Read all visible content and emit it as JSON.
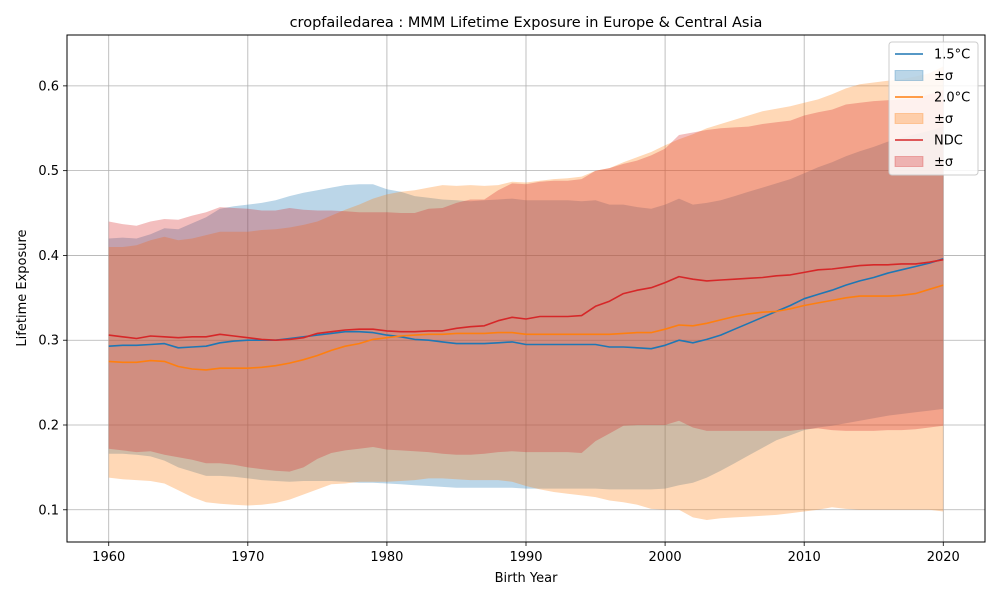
{
  "chart_data": {
    "type": "area",
    "title": "cropfailedarea : MMM Lifetime Exposure in Europe & Central Asia",
    "xlabel": "Birth Year",
    "ylabel": "Lifetime Exposure",
    "xlim": [
      1957,
      2023
    ],
    "ylim": [
      0.062,
      0.66
    ],
    "xticks": [
      1960,
      1970,
      1980,
      1990,
      2000,
      2010,
      2020
    ],
    "yticks": [
      0.1,
      0.2,
      0.3,
      0.4,
      0.5,
      0.6
    ],
    "grid": true,
    "legend_position": "top-right",
    "x": [
      1960,
      1961,
      1962,
      1963,
      1964,
      1965,
      1966,
      1967,
      1968,
      1969,
      1970,
      1971,
      1972,
      1973,
      1974,
      1975,
      1976,
      1977,
      1978,
      1979,
      1980,
      1981,
      1982,
      1983,
      1984,
      1985,
      1986,
      1987,
      1988,
      1989,
      1990,
      1991,
      1992,
      1993,
      1994,
      1995,
      1996,
      1997,
      1998,
      1999,
      2000,
      2001,
      2002,
      2003,
      2004,
      2005,
      2006,
      2007,
      2008,
      2009,
      2010,
      2011,
      2012,
      2013,
      2014,
      2015,
      2016,
      2017,
      2018,
      2019,
      2020
    ],
    "series": [
      {
        "name": "1.5°C",
        "band_name": "±σ",
        "color": "#1f77b4",
        "fill": "#a6c8e3",
        "mean": [
          0.293,
          0.294,
          0.294,
          0.295,
          0.296,
          0.291,
          0.292,
          0.293,
          0.297,
          0.299,
          0.3,
          0.3,
          0.3,
          0.302,
          0.304,
          0.306,
          0.308,
          0.31,
          0.31,
          0.309,
          0.306,
          0.304,
          0.301,
          0.3,
          0.298,
          0.296,
          0.296,
          0.296,
          0.297,
          0.298,
          0.295,
          0.295,
          0.295,
          0.295,
          0.295,
          0.295,
          0.292,
          0.292,
          0.291,
          0.29,
          0.294,
          0.3,
          0.297,
          0.301,
          0.306,
          0.313,
          0.32,
          0.327,
          0.334,
          0.341,
          0.349,
          0.354,
          0.359,
          0.365,
          0.37,
          0.374,
          0.379,
          0.383,
          0.387,
          0.391,
          0.396
        ],
        "upper": [
          0.42,
          0.421,
          0.42,
          0.425,
          0.432,
          0.431,
          0.438,
          0.445,
          0.455,
          0.458,
          0.46,
          0.462,
          0.465,
          0.47,
          0.474,
          0.477,
          0.48,
          0.483,
          0.484,
          0.484,
          0.478,
          0.475,
          0.47,
          0.468,
          0.466,
          0.465,
          0.464,
          0.465,
          0.466,
          0.467,
          0.465,
          0.465,
          0.465,
          0.465,
          0.464,
          0.465,
          0.46,
          0.46,
          0.457,
          0.455,
          0.46,
          0.467,
          0.46,
          0.462,
          0.465,
          0.47,
          0.475,
          0.48,
          0.485,
          0.49,
          0.497,
          0.504,
          0.51,
          0.517,
          0.523,
          0.528,
          0.534,
          0.539,
          0.543,
          0.547,
          0.552
        ],
        "lower": [
          0.166,
          0.166,
          0.165,
          0.163,
          0.158,
          0.15,
          0.145,
          0.14,
          0.14,
          0.139,
          0.137,
          0.135,
          0.134,
          0.133,
          0.134,
          0.134,
          0.134,
          0.133,
          0.132,
          0.132,
          0.131,
          0.13,
          0.129,
          0.128,
          0.127,
          0.126,
          0.126,
          0.126,
          0.126,
          0.126,
          0.125,
          0.125,
          0.125,
          0.125,
          0.125,
          0.125,
          0.124,
          0.124,
          0.124,
          0.124,
          0.125,
          0.129,
          0.132,
          0.138,
          0.146,
          0.155,
          0.164,
          0.173,
          0.182,
          0.188,
          0.194,
          0.197,
          0.199,
          0.202,
          0.205,
          0.208,
          0.211,
          0.213,
          0.215,
          0.217,
          0.219
        ]
      },
      {
        "name": "2.0°C",
        "band_name": "±σ",
        "color": "#ff7f0e",
        "fill": "#ffcf9f",
        "mean": [
          0.275,
          0.274,
          0.274,
          0.276,
          0.275,
          0.269,
          0.266,
          0.265,
          0.267,
          0.267,
          0.267,
          0.268,
          0.27,
          0.273,
          0.277,
          0.282,
          0.288,
          0.293,
          0.296,
          0.301,
          0.303,
          0.305,
          0.306,
          0.307,
          0.307,
          0.308,
          0.308,
          0.308,
          0.309,
          0.309,
          0.307,
          0.307,
          0.307,
          0.307,
          0.307,
          0.307,
          0.307,
          0.308,
          0.309,
          0.309,
          0.313,
          0.318,
          0.317,
          0.32,
          0.324,
          0.328,
          0.331,
          0.333,
          0.334,
          0.337,
          0.341,
          0.344,
          0.347,
          0.35,
          0.352,
          0.352,
          0.352,
          0.353,
          0.355,
          0.36,
          0.365
        ],
        "upper": [
          0.41,
          0.41,
          0.412,
          0.418,
          0.422,
          0.418,
          0.42,
          0.424,
          0.428,
          0.428,
          0.428,
          0.43,
          0.431,
          0.433,
          0.436,
          0.44,
          0.447,
          0.454,
          0.46,
          0.467,
          0.472,
          0.475,
          0.477,
          0.48,
          0.483,
          0.482,
          0.483,
          0.482,
          0.483,
          0.487,
          0.486,
          0.488,
          0.49,
          0.491,
          0.493,
          0.5,
          0.503,
          0.51,
          0.516,
          0.522,
          0.53,
          0.537,
          0.543,
          0.55,
          0.555,
          0.56,
          0.565,
          0.57,
          0.573,
          0.576,
          0.58,
          0.584,
          0.59,
          0.597,
          0.602,
          0.604,
          0.606,
          0.608,
          0.611,
          0.615,
          0.623
        ],
        "lower": [
          0.138,
          0.136,
          0.135,
          0.134,
          0.131,
          0.123,
          0.115,
          0.109,
          0.107,
          0.106,
          0.105,
          0.106,
          0.108,
          0.112,
          0.118,
          0.124,
          0.13,
          0.131,
          0.133,
          0.133,
          0.133,
          0.134,
          0.135,
          0.137,
          0.137,
          0.136,
          0.135,
          0.135,
          0.135,
          0.133,
          0.128,
          0.124,
          0.121,
          0.119,
          0.117,
          0.115,
          0.111,
          0.109,
          0.106,
          0.101,
          0.1,
          0.1,
          0.091,
          0.088,
          0.09,
          0.091,
          0.092,
          0.093,
          0.094,
          0.096,
          0.098,
          0.1,
          0.103,
          0.101,
          0.1,
          0.1,
          0.1,
          0.1,
          0.1,
          0.1,
          0.098
        ]
      },
      {
        "name": "NDC",
        "band_name": "±σ",
        "color": "#d62728",
        "fill": "#f0a9aa",
        "mean": [
          0.306,
          0.304,
          0.302,
          0.305,
          0.304,
          0.303,
          0.304,
          0.304,
          0.307,
          0.305,
          0.303,
          0.301,
          0.3,
          0.301,
          0.303,
          0.308,
          0.31,
          0.312,
          0.313,
          0.313,
          0.311,
          0.31,
          0.31,
          0.311,
          0.311,
          0.314,
          0.316,
          0.317,
          0.323,
          0.327,
          0.325,
          0.328,
          0.328,
          0.328,
          0.329,
          0.34,
          0.346,
          0.355,
          0.359,
          0.362,
          0.368,
          0.375,
          0.372,
          0.37,
          0.371,
          0.372,
          0.373,
          0.374,
          0.376,
          0.377,
          0.38,
          0.383,
          0.384,
          0.386,
          0.388,
          0.389,
          0.389,
          0.39,
          0.39,
          0.392,
          0.395
        ],
        "upper": [
          0.44,
          0.437,
          0.435,
          0.44,
          0.443,
          0.442,
          0.447,
          0.451,
          0.457,
          0.456,
          0.455,
          0.453,
          0.453,
          0.456,
          0.454,
          0.453,
          0.453,
          0.452,
          0.451,
          0.451,
          0.451,
          0.45,
          0.45,
          0.455,
          0.456,
          0.462,
          0.466,
          0.466,
          0.477,
          0.485,
          0.484,
          0.487,
          0.488,
          0.488,
          0.49,
          0.5,
          0.503,
          0.508,
          0.512,
          0.518,
          0.526,
          0.542,
          0.545,
          0.548,
          0.55,
          0.551,
          0.552,
          0.555,
          0.557,
          0.559,
          0.565,
          0.569,
          0.572,
          0.578,
          0.58,
          0.582,
          0.583,
          0.584,
          0.585,
          0.59,
          0.595
        ],
        "lower": [
          0.172,
          0.17,
          0.168,
          0.169,
          0.165,
          0.162,
          0.159,
          0.155,
          0.155,
          0.153,
          0.15,
          0.148,
          0.146,
          0.145,
          0.15,
          0.16,
          0.167,
          0.17,
          0.172,
          0.174,
          0.171,
          0.17,
          0.169,
          0.168,
          0.166,
          0.165,
          0.165,
          0.166,
          0.168,
          0.169,
          0.168,
          0.168,
          0.168,
          0.168,
          0.167,
          0.181,
          0.19,
          0.199,
          0.2,
          0.2,
          0.2,
          0.205,
          0.197,
          0.193,
          0.193,
          0.193,
          0.193,
          0.193,
          0.193,
          0.193,
          0.195,
          0.196,
          0.194,
          0.193,
          0.193,
          0.193,
          0.194,
          0.194,
          0.195,
          0.197,
          0.199
        ]
      }
    ]
  }
}
